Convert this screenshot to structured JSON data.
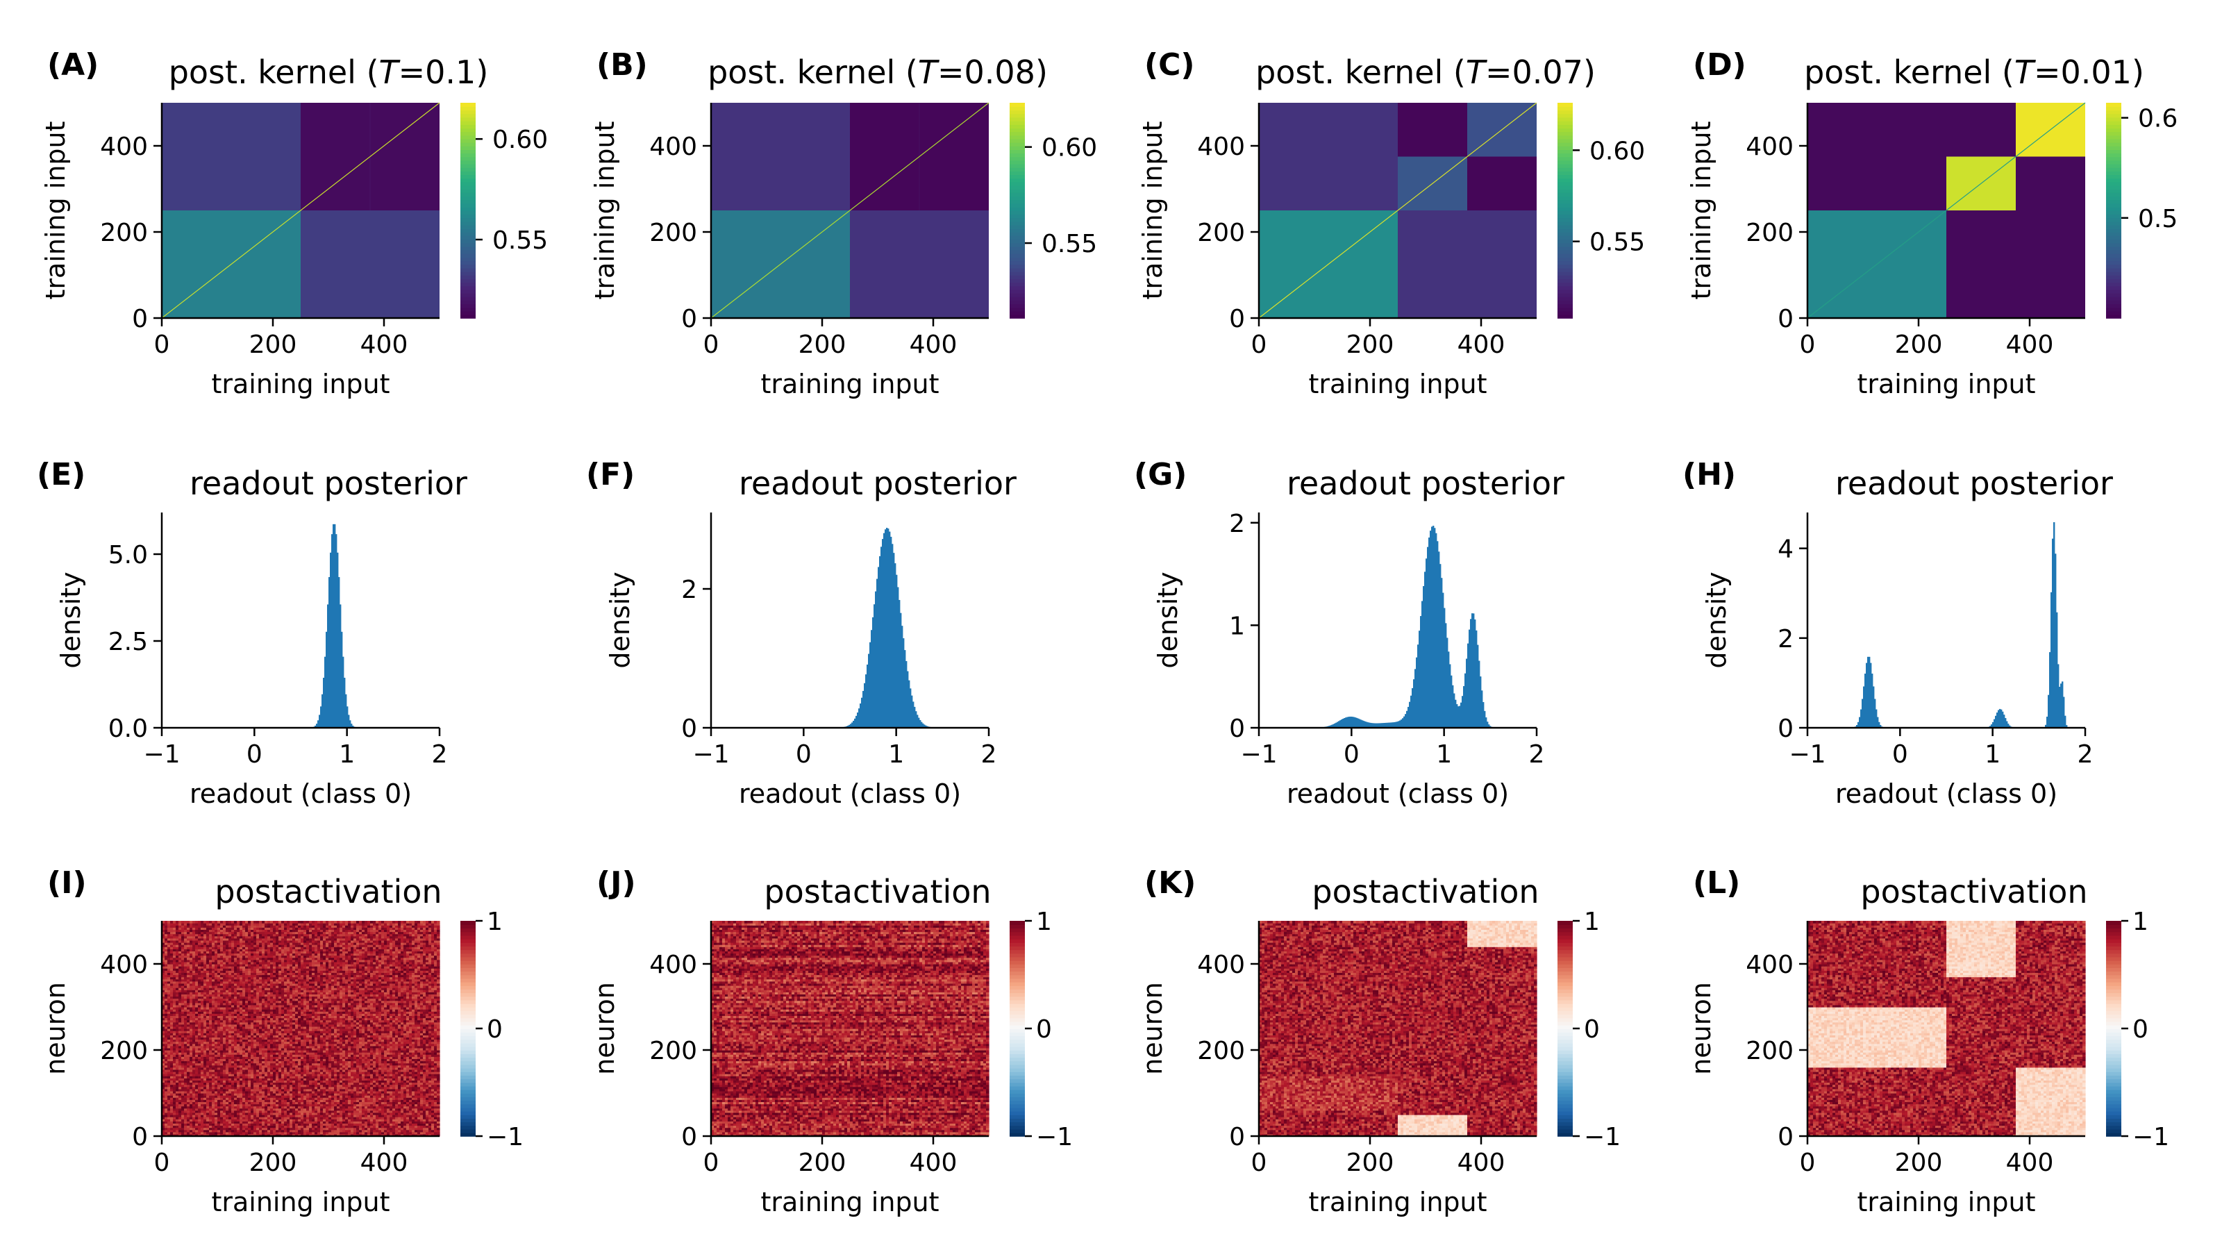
{
  "chart_data": [
    {
      "id": "A",
      "type": "heatmap",
      "label": "(A)",
      "title_pre": "post. kernel (",
      "title_var": "T",
      "title_post": "=0.1)",
      "xlabel": "training input",
      "ylabel": "training input",
      "xticks": [
        0,
        200,
        400
      ],
      "yticks": [
        0,
        200,
        400
      ],
      "range": [
        0,
        500
      ],
      "split": 250,
      "cells": {
        "bottom_left": 0.558,
        "bottom_right": 0.532,
        "top_left": 0.532,
        "top_right": 0.515
      },
      "diag": 0.61,
      "vmin": 0.511,
      "vmax": 0.618,
      "colormap": "viridis",
      "cbar_ticks": [
        0.55,
        0.6
      ],
      "cbar_labels": [
        "0.55",
        "0.60"
      ]
    },
    {
      "id": "B",
      "type": "heatmap",
      "label": "(B)",
      "title_pre": "post. kernel (",
      "title_var": "T",
      "title_post": "=0.08)",
      "xlabel": "training input",
      "ylabel": "training input",
      "xticks": [
        0,
        200,
        400
      ],
      "yticks": [
        0,
        200,
        400
      ],
      "range": [
        0,
        500
      ],
      "split": 250,
      "cells": {
        "bottom_left": 0.557,
        "bottom_right": 0.53,
        "top_left": 0.53,
        "top_right": 0.513
      },
      "diag": 0.61,
      "vmin": 0.511,
      "vmax": 0.623,
      "colormap": "viridis",
      "cbar_ticks": [
        0.55,
        0.6
      ],
      "cbar_labels": [
        "0.55",
        "0.60"
      ]
    },
    {
      "id": "C",
      "type": "heatmap",
      "label": "(C)",
      "title_pre": "post. kernel (",
      "title_var": "T",
      "title_post": "=0.07)",
      "xlabel": "training input",
      "ylabel": "training input",
      "xticks": [
        0,
        200,
        400
      ],
      "yticks": [
        0,
        200,
        400
      ],
      "range": [
        0,
        500
      ],
      "split": 250,
      "cells": {
        "bottom_left": 0.565,
        "bottom_right": 0.528,
        "top_left": 0.528,
        "top_right": [
          [
            0.51,
            0.537
          ],
          [
            0.54,
            0.51
          ]
        ]
      },
      "diag": 0.62,
      "vmin": 0.508,
      "vmax": 0.626,
      "colormap": "viridis",
      "cbar_ticks": [
        0.55,
        0.6
      ],
      "cbar_labels": [
        "0.55",
        "0.60"
      ]
    },
    {
      "id": "D",
      "type": "heatmap",
      "label": "(D)",
      "title_pre": "post. kernel (",
      "title_var": "T",
      "title_post": "=0.01)",
      "xlabel": "training input",
      "ylabel": "training input",
      "xticks": [
        0,
        200,
        400
      ],
      "yticks": [
        0,
        200,
        400
      ],
      "range": [
        0,
        500
      ],
      "split": 250,
      "cells": {
        "bottom_left": 0.5,
        "bottom_right": 0.406,
        "top_left": 0.406,
        "top_right": [
          [
            0.406,
            0.61
          ],
          [
            0.6,
            0.406
          ]
        ]
      },
      "diag": 0.52,
      "vmin": 0.4,
      "vmax": 0.615,
      "colormap": "viridis",
      "cbar_ticks": [
        0.5,
        0.6
      ],
      "cbar_labels": [
        "0.5",
        "0.6"
      ]
    },
    {
      "id": "E",
      "type": "bar",
      "label": "(E)",
      "title": "readout posterior",
      "xlabel": "readout (class 0)",
      "ylabel": "density",
      "xlim": [
        -1,
        2
      ],
      "ylim": [
        0,
        6.2
      ],
      "xticks": [
        -1,
        0,
        1,
        2
      ],
      "xtick_labels": [
        "−1",
        "0",
        "1",
        "2"
      ],
      "yticks": [
        0,
        2.5,
        5.0
      ],
      "ytick_labels": [
        "0.0",
        "2.5",
        "5.0"
      ],
      "bin_width": 0.015,
      "components": [
        {
          "mu": 0.86,
          "sigma": 0.067,
          "peak": 5.9
        }
      ]
    },
    {
      "id": "F",
      "type": "bar",
      "label": "(F)",
      "title": "readout posterior",
      "xlabel": "readout (class 0)",
      "ylabel": "density",
      "xlim": [
        -1,
        2
      ],
      "ylim": [
        0,
        3.1
      ],
      "xticks": [
        -1,
        0,
        1,
        2
      ],
      "xtick_labels": [
        "−1",
        "0",
        "1",
        "2"
      ],
      "yticks": [
        0,
        2
      ],
      "ytick_labels": [
        "0",
        "2"
      ],
      "bin_width": 0.015,
      "components": [
        {
          "mu": 0.9,
          "sigma": 0.14,
          "peak": 2.88
        }
      ]
    },
    {
      "id": "G",
      "type": "bar",
      "label": "(G)",
      "title": "readout posterior",
      "xlabel": "readout (class 0)",
      "ylabel": "density",
      "xlim": [
        -1,
        2
      ],
      "ylim": [
        0,
        2.1
      ],
      "xticks": [
        -1,
        0,
        1,
        2
      ],
      "xtick_labels": [
        "−1",
        "0",
        "1",
        "2"
      ],
      "yticks": [
        0,
        1,
        2
      ],
      "ytick_labels": [
        "0",
        "1",
        "2"
      ],
      "bin_width": 0.015,
      "components": [
        {
          "mu": 0.88,
          "sigma": 0.12,
          "peak": 1.96
        },
        {
          "mu": 1.31,
          "sigma": 0.065,
          "peak": 1.12
        },
        {
          "mu": -0.02,
          "sigma": 0.12,
          "peak": 0.1
        },
        {
          "mu": 0.45,
          "sigma": 0.25,
          "peak": 0.05
        }
      ]
    },
    {
      "id": "H",
      "type": "bar",
      "label": "(H)",
      "title": "readout posterior",
      "xlabel": "readout (class 0)",
      "ylabel": "density",
      "xlim": [
        -1,
        2
      ],
      "ylim": [
        0,
        4.8
      ],
      "xticks": [
        -1,
        0,
        1,
        2
      ],
      "xtick_labels": [
        "−1",
        "0",
        "1",
        "2"
      ],
      "yticks": [
        0,
        2,
        4
      ],
      "ytick_labels": [
        "0",
        "2",
        "4"
      ],
      "bin_width": 0.015,
      "components": [
        {
          "mu": -0.34,
          "sigma": 0.05,
          "peak": 1.6
        },
        {
          "mu": 1.08,
          "sigma": 0.05,
          "peak": 0.42
        },
        {
          "mu": 1.66,
          "sigma": 0.03,
          "peak": 4.6
        },
        {
          "mu": 1.75,
          "sigma": 0.02,
          "peak": 1.0
        }
      ]
    },
    {
      "id": "I",
      "type": "heatmap",
      "label": "(I)",
      "title": "postactivation",
      "xlabel": "training input",
      "ylabel": "neuron",
      "xticks": [
        0,
        200,
        400
      ],
      "yticks": [
        0,
        200,
        400
      ],
      "range": [
        0,
        500
      ],
      "vmin": -1,
      "vmax": 1,
      "colormap": "RdBu_r",
      "cbar_ticks": [
        -1,
        0,
        1
      ],
      "cbar_labels": [
        "−1",
        "0",
        "1"
      ],
      "pattern": "uniform"
    },
    {
      "id": "J",
      "type": "heatmap",
      "label": "(J)",
      "title": "postactivation",
      "xlabel": "training input",
      "ylabel": "neuron",
      "xticks": [
        0,
        200,
        400
      ],
      "yticks": [
        0,
        200,
        400
      ],
      "range": [
        0,
        500
      ],
      "vmin": -1,
      "vmax": 1,
      "colormap": "RdBu_r",
      "cbar_ticks": [
        -1,
        0,
        1
      ],
      "cbar_labels": [
        "−1",
        "0",
        "1"
      ],
      "pattern": "streaked"
    },
    {
      "id": "K",
      "type": "heatmap",
      "label": "(K)",
      "title": "postactivation",
      "xlabel": "training input",
      "ylabel": "neuron",
      "xticks": [
        0,
        200,
        400
      ],
      "yticks": [
        0,
        200,
        400
      ],
      "range": [
        0,
        500
      ],
      "vmin": -1,
      "vmax": 1,
      "colormap": "RdBu_r",
      "cbar_ticks": [
        -1,
        0,
        1
      ],
      "cbar_labels": [
        "−1",
        "0",
        "1"
      ],
      "pattern": "blocks_K"
    },
    {
      "id": "L",
      "type": "heatmap",
      "label": "(L)",
      "title": "postactivation",
      "xlabel": "training input",
      "ylabel": "neuron",
      "xticks": [
        0,
        200,
        400
      ],
      "yticks": [
        0,
        200,
        400
      ],
      "range": [
        0,
        500
      ],
      "vmin": -1,
      "vmax": 1,
      "colormap": "RdBu_r",
      "cbar_ticks": [
        -1,
        0,
        1
      ],
      "cbar_labels": [
        "−1",
        "0",
        "1"
      ],
      "pattern": "blocks_L"
    }
  ]
}
